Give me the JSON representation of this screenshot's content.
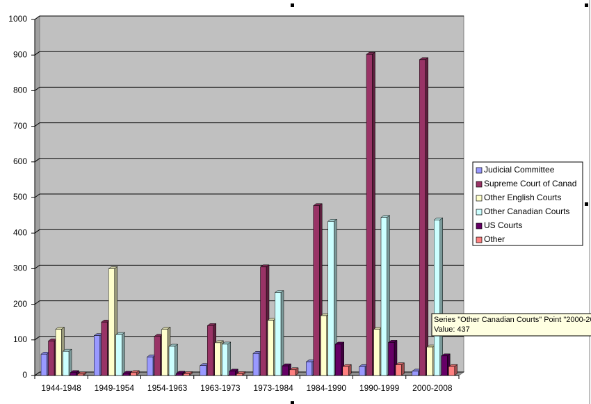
{
  "chart_data": {
    "type": "bar",
    "categories": [
      "1944-1948",
      "1949-1954",
      "1954-1963",
      "1963-1973",
      "1973-1984",
      "1984-1990",
      "1990-1999",
      "2000-2008"
    ],
    "series": [
      {
        "name": "Judicial Committee",
        "color": "#9999ff",
        "values": [
          60,
          112,
          52,
          28,
          62,
          38,
          25,
          12
        ]
      },
      {
        "name": "Supreme Court of Canad",
        "color": "#993366",
        "values": [
          97,
          150,
          110,
          140,
          305,
          477,
          902,
          887
        ]
      },
      {
        "name": "Other English Courts",
        "color": "#ffffcc",
        "values": [
          130,
          300,
          130,
          92,
          155,
          168,
          130,
          80
        ]
      },
      {
        "name": "Other Canadian Courts",
        "color": "#ccffff",
        "values": [
          68,
          115,
          82,
          88,
          233,
          433,
          444,
          437
        ]
      },
      {
        "name": "US Courts",
        "color": "#660066",
        "values": [
          8,
          6,
          6,
          12,
          27,
          88,
          93,
          55
        ]
      },
      {
        "name": "Other",
        "color": "#ff8080",
        "values": [
          4,
          8,
          5,
          5,
          16,
          25,
          30,
          25
        ]
      }
    ],
    "ylim": [
      0,
      1000
    ],
    "yticks": [
      0,
      100,
      200,
      300,
      400,
      500,
      600,
      700,
      800,
      900,
      1000
    ],
    "grid": true,
    "legend": "right",
    "tooltip": [
      "Series \"Other Canadian Courts\" Point \"2000-20",
      "Value: 437"
    ]
  }
}
